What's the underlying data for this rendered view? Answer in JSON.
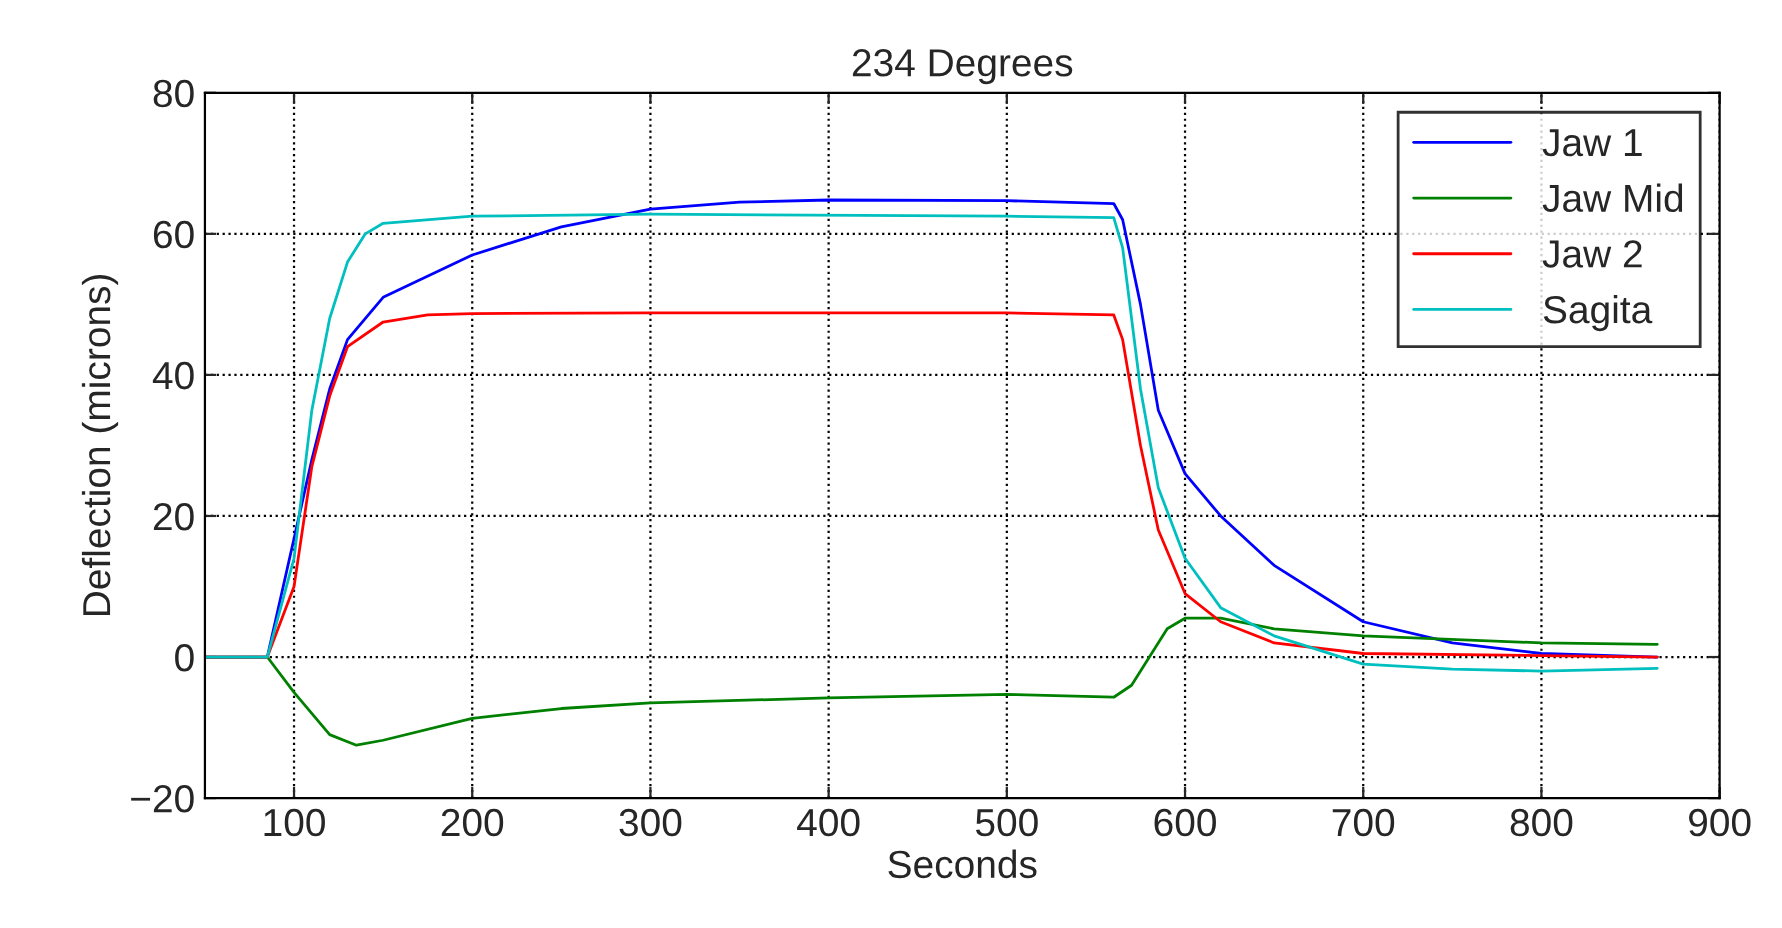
{
  "chart_data": {
    "type": "line",
    "title": "234 Degrees",
    "xlabel": "Seconds",
    "ylabel": "Deflection (microns)",
    "xlim": [
      50,
      900
    ],
    "xticks": [
      100,
      200,
      300,
      400,
      500,
      600,
      700,
      800,
      900
    ],
    "ylim": [
      -20,
      80
    ],
    "yticks": [
      {
        "value": -20,
        "label": "−20"
      },
      0,
      20,
      40,
      60,
      80
    ],
    "grid": true,
    "legend": "top right",
    "line_style": "solid",
    "marker": "none",
    "series": [
      {
        "name": "Jaw 1",
        "color": "#0000ff",
        "x": [
          50,
          85,
          110,
          120,
          130,
          150,
          200,
          250,
          300,
          350,
          400,
          500,
          560,
          565,
          575,
          585,
          600,
          620,
          650,
          700,
          750,
          800,
          865
        ],
        "values": [
          0,
          0,
          28,
          38,
          45,
          51,
          57,
          61,
          63.5,
          64.5,
          64.8,
          64.7,
          64.3,
          62,
          50,
          35,
          26,
          20,
          13,
          5,
          2,
          0.5,
          0
        ]
      },
      {
        "name": "Jaw Mid",
        "color": "#008000",
        "x": [
          50,
          85,
          100,
          120,
          135,
          150,
          200,
          250,
          300,
          400,
          500,
          560,
          570,
          580,
          590,
          600,
          620,
          650,
          700,
          800,
          865
        ],
        "values": [
          0,
          0,
          -5,
          -11,
          -12.5,
          -11.8,
          -8.7,
          -7.3,
          -6.5,
          -5.8,
          -5.3,
          -5.7,
          -4,
          0,
          4,
          5.5,
          5.5,
          4,
          3,
          2,
          1.8
        ]
      },
      {
        "name": "Jaw 2",
        "color": "#ff0000",
        "x": [
          50,
          85,
          100,
          110,
          120,
          130,
          150,
          175,
          200,
          300,
          500,
          560,
          565,
          575,
          585,
          600,
          620,
          650,
          700,
          865
        ],
        "values": [
          0,
          0,
          10,
          27,
          37,
          44,
          47.5,
          48.5,
          48.7,
          48.8,
          48.8,
          48.5,
          45,
          30,
          18,
          9,
          5,
          2,
          0.5,
          0
        ]
      },
      {
        "name": "Sagita",
        "color": "#00bfbf",
        "x": [
          50,
          85,
          100,
          110,
          120,
          130,
          140,
          150,
          200,
          300,
          500,
          560,
          565,
          575,
          585,
          600,
          620,
          650,
          700,
          750,
          800,
          865
        ],
        "values": [
          0,
          0,
          14,
          35,
          48,
          56,
          60,
          61.5,
          62.5,
          62.8,
          62.5,
          62.3,
          58,
          38,
          24,
          14,
          7,
          3,
          -1,
          -1.7,
          -2,
          -1.6
        ]
      }
    ]
  }
}
